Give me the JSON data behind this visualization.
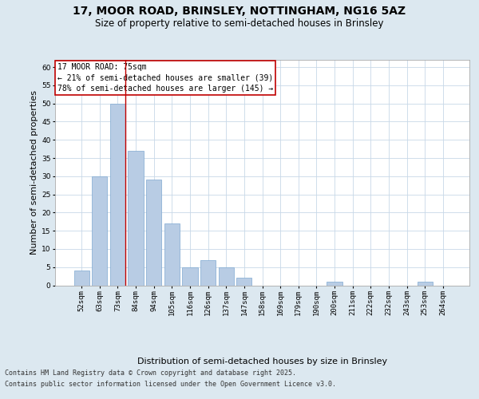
{
  "title_line1": "17, MOOR ROAD, BRINSLEY, NOTTINGHAM, NG16 5AZ",
  "title_line2": "Size of property relative to semi-detached houses in Brinsley",
  "xlabel": "Distribution of semi-detached houses by size in Brinsley",
  "ylabel": "Number of semi-detached properties",
  "categories": [
    "52sqm",
    "63sqm",
    "73sqm",
    "84sqm",
    "94sqm",
    "105sqm",
    "116sqm",
    "126sqm",
    "137sqm",
    "147sqm",
    "158sqm",
    "169sqm",
    "179sqm",
    "190sqm",
    "200sqm",
    "211sqm",
    "222sqm",
    "232sqm",
    "243sqm",
    "253sqm",
    "264sqm"
  ],
  "values": [
    4,
    30,
    50,
    37,
    29,
    17,
    5,
    7,
    5,
    2,
    0,
    0,
    0,
    0,
    1,
    0,
    0,
    0,
    0,
    1,
    0
  ],
  "bar_color": "#b8cce4",
  "bar_edge_color": "#7fa8d0",
  "red_line_x": 2,
  "annotation_title": "17 MOOR ROAD: 75sqm",
  "annotation_line1": "← 21% of semi-detached houses are smaller (39)",
  "annotation_line2": "78% of semi-detached houses are larger (145) →",
  "ylim": [
    0,
    62
  ],
  "yticks": [
    0,
    5,
    10,
    15,
    20,
    25,
    30,
    35,
    40,
    45,
    50,
    55,
    60
  ],
  "grid_color": "#c8d8e8",
  "background_color": "#dce8f0",
  "plot_background": "#ffffff",
  "footer_line1": "Contains HM Land Registry data © Crown copyright and database right 2025.",
  "footer_line2": "Contains public sector information licensed under the Open Government Licence v3.0.",
  "title_fontsize": 10,
  "subtitle_fontsize": 8.5,
  "axis_label_fontsize": 8,
  "tick_fontsize": 6.5,
  "annotation_fontsize": 7,
  "footer_fontsize": 6
}
